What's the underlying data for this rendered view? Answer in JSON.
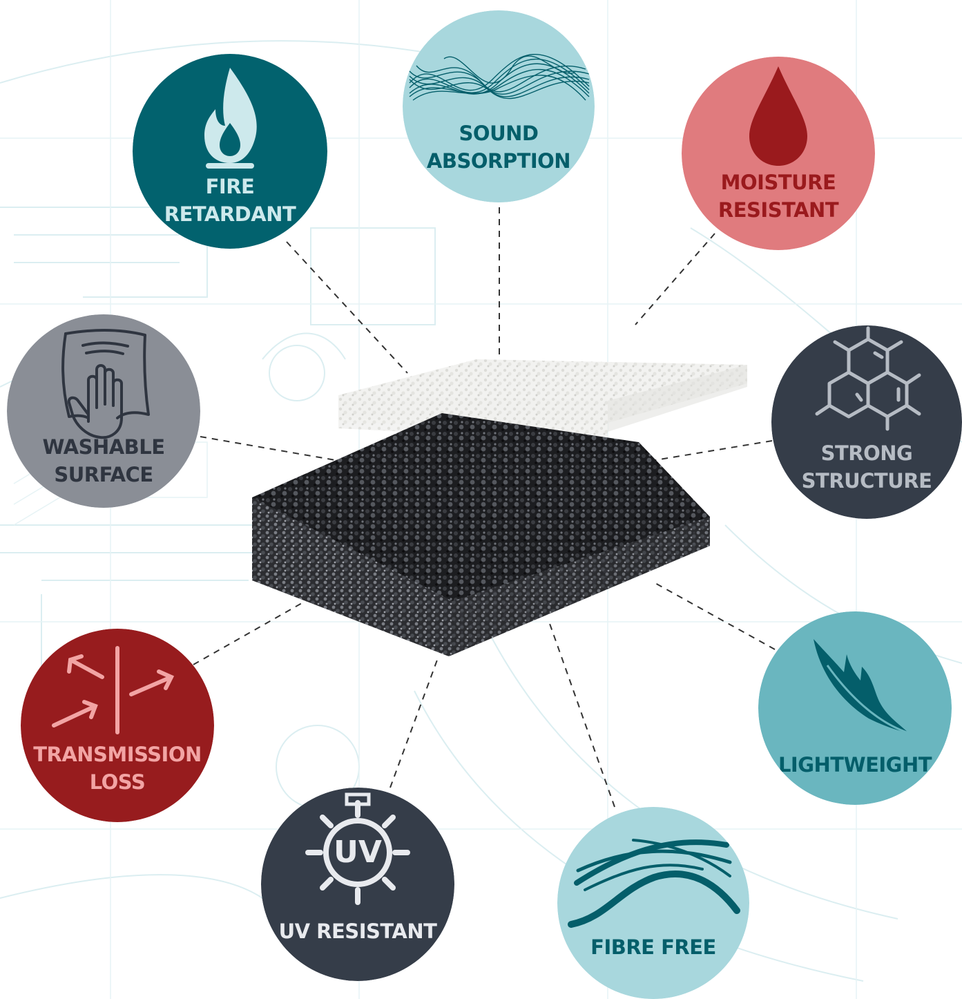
{
  "badges": {
    "fire": {
      "line1": "FIRE",
      "line2": "RETARDANT",
      "bg": "#02626e",
      "text": "#cde9ec"
    },
    "sound": {
      "line1": "SOUND",
      "line2": "ABSORPTION",
      "bg": "#a8d7dd",
      "text": "#045e6a"
    },
    "moisture": {
      "line1": "MOISTURE",
      "line2": "RESISTANT",
      "bg": "#e07b7e",
      "text": "#9a1a1d"
    },
    "washable": {
      "line1": "WASHABLE",
      "line2": "SURFACE",
      "bg": "#8a8e96",
      "text": "#2f3540"
    },
    "strong": {
      "line1": "STRONG",
      "line2": "STRUCTURE",
      "bg": "#353d49",
      "text": "#b6bcc4"
    },
    "transmission": {
      "line1": "TRANSMISSION",
      "line2": "LOSS",
      "bg": "#971c1e",
      "text": "#f2a4a4"
    },
    "lightweight": {
      "line1": "LIGHTWEIGHT",
      "bg": "#6ab6bf",
      "text": "#045e6a"
    },
    "uv": {
      "line1": "UV RESISTANT",
      "icon_text": "UV",
      "bg": "#353d49",
      "text": "#e8eaee"
    },
    "fibre": {
      "line1": "FIBRE FREE",
      "bg": "#a8d7dd",
      "text": "#045e6a"
    }
  }
}
